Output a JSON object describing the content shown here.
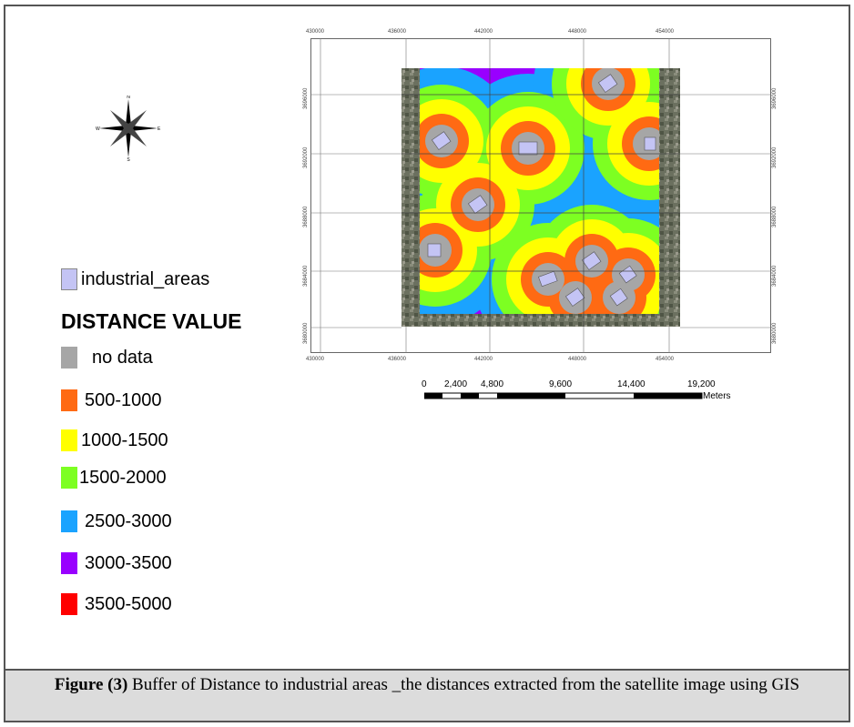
{
  "map": {
    "x_ticks": [
      "430000",
      "436000",
      "442000",
      "448000",
      "454000"
    ],
    "y_ticks": [
      "3696000",
      "3692000",
      "3688000",
      "3684000",
      "3680000"
    ],
    "scale_bar": {
      "labels": [
        "0",
        "2,400",
        "4,800",
        "9,600",
        "14,400",
        "19,200"
      ],
      "unit": "Meters"
    },
    "compass": {
      "n": "N",
      "s": "S",
      "e": "E",
      "w": "W"
    }
  },
  "legend": {
    "industrial_label": "industrial_areas",
    "heading": "DISTANCE VALUE",
    "items": [
      {
        "label": "no data",
        "color": "#a6a6a6"
      },
      {
        "label": "500-1000",
        "color": "#ff6a13"
      },
      {
        "label": "1000-1500",
        "color": "#ffff00"
      },
      {
        "label": "1500-2000",
        "color": "#7dff22"
      },
      {
        "label": "2500-3000",
        "color": "#1aa3ff"
      },
      {
        "label": "3000-3500",
        "color": "#9900ff"
      },
      {
        "label": "3500-5000",
        "color": "#ff0000"
      }
    ],
    "industrial_color": "#c4c4f4"
  },
  "caption": {
    "figure": "Figure (3)",
    "text": " Buffer of Distance to industrial areas _the distances extracted from the satellite image using GIS"
  }
}
